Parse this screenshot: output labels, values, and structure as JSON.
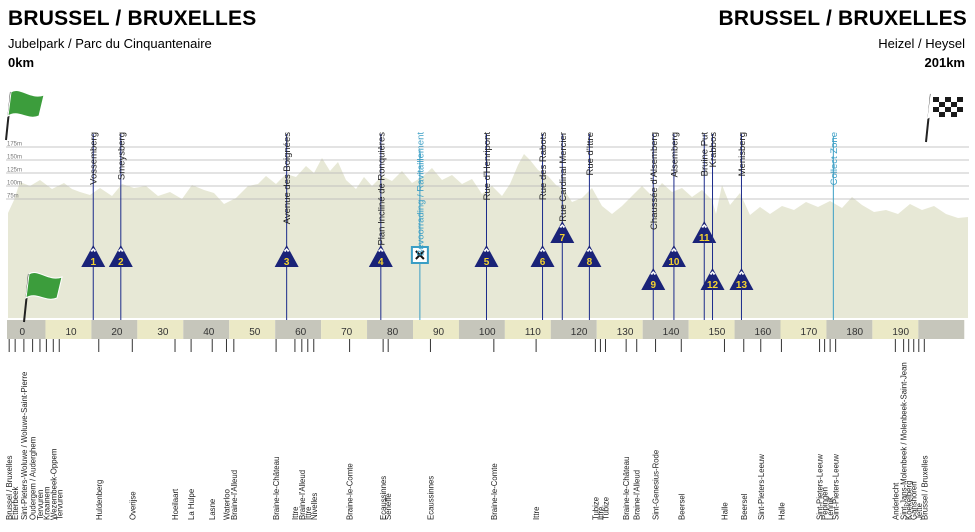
{
  "header": {
    "start_city": "BRUSSEL / BRUXELLES",
    "start_place": "Jubelpark / Parc du Cinquantenaire",
    "start_km": "0km",
    "finish_city": "BRUSSEL / BRUXELLES",
    "finish_place": "Heizel / Heysel",
    "finish_km": "201km"
  },
  "altitude_labels": [
    "175m",
    "150m",
    "125m",
    "100m",
    "75m"
  ],
  "km_ticks": [
    "0",
    "10",
    "20",
    "30",
    "40",
    "50",
    "60",
    "70",
    "80",
    "90",
    "100",
    "110",
    "120",
    "130",
    "140",
    "150",
    "160",
    "170",
    "180",
    "190"
  ],
  "markers": [
    {
      "km": 15.4,
      "label": "Vossemberg",
      "kind": "climb",
      "num": "1",
      "level": "hi"
    },
    {
      "km": 21.4,
      "label": "Smeysberg",
      "kind": "climb",
      "num": "2",
      "level": "hi"
    },
    {
      "km": 57.5,
      "label": "Avenue des Boignées",
      "kind": "climb",
      "num": "3",
      "level": "hi"
    },
    {
      "km": 78.0,
      "label": "Plan Incliné de Ronquières",
      "kind": "climb",
      "num": "4",
      "level": "hi"
    },
    {
      "km": 86.5,
      "label": "Bevoorrading / Ravitaillement",
      "kind": "feed",
      "num": "",
      "level": "hi"
    },
    {
      "km": 101.0,
      "label": "Rue d'Henripont",
      "kind": "climb",
      "num": "5",
      "level": "hi"
    },
    {
      "km": 113.2,
      "label": "Rue des Rabots",
      "kind": "climb",
      "num": "6",
      "level": "hi"
    },
    {
      "km": 117.5,
      "label": "Rue Cardinal Mercier",
      "kind": "climb",
      "num": "7",
      "level": "up"
    },
    {
      "km": 123.4,
      "label": "Rue d'Ittre",
      "kind": "climb",
      "num": "8",
      "level": "hi"
    },
    {
      "km": 137.3,
      "label": "Chaussée d'Alsemberg",
      "kind": "climb",
      "num": "9",
      "level": "lo"
    },
    {
      "km": 141.8,
      "label": "Alsemberg",
      "kind": "climb",
      "num": "10",
      "level": "hi"
    },
    {
      "km": 148.4,
      "label": "Bruine Put",
      "kind": "climb",
      "num": "11",
      "level": "up"
    },
    {
      "km": 150.2,
      "label": "Krabbos",
      "kind": "climb",
      "num": "12",
      "level": "lo"
    },
    {
      "km": 156.5,
      "label": "Menisberg",
      "kind": "climb",
      "num": "13",
      "level": "lo"
    },
    {
      "km": 176.5,
      "label": "Collect Zone",
      "kind": "zone",
      "num": "",
      "level": "none"
    }
  ],
  "places": [
    {
      "km": -2.9,
      "label": "Brussel / Bruxelles"
    },
    {
      "km": -1.6,
      "label": "Etterbeek"
    },
    {
      "km": 0.3,
      "label": "Sint-Pieters-Woluwe / Woluwe-Saint-Pierre"
    },
    {
      "km": 2.2,
      "label": "Oudergem / Auderghem"
    },
    {
      "km": 3.8,
      "label": "Tervuren"
    },
    {
      "km": 5.2,
      "label": "Kraainem"
    },
    {
      "km": 6.7,
      "label": "Wezembeek-Oppem"
    },
    {
      "km": 8.0,
      "label": "Tervuren"
    },
    {
      "km": 16.6,
      "label": "Huldenberg"
    },
    {
      "km": 23.9,
      "label": "Overijse"
    },
    {
      "km": 33.2,
      "label": "Hoeilaart"
    },
    {
      "km": 36.7,
      "label": "La Hulpe"
    },
    {
      "km": 41.3,
      "label": "Lasne"
    },
    {
      "km": 44.4,
      "label": "Waterloo"
    },
    {
      "km": 46.0,
      "label": "Braine-l'Alleud"
    },
    {
      "km": 55.2,
      "label": "Braine-le-Château"
    },
    {
      "km": 59.3,
      "label": "Ittre"
    },
    {
      "km": 60.8,
      "label": "Braine-l'Alleud"
    },
    {
      "km": 62.1,
      "label": "Ittre"
    },
    {
      "km": 63.4,
      "label": "Nivelles"
    },
    {
      "km": 71.2,
      "label": "Braine-le-Comte"
    },
    {
      "km": 78.5,
      "label": "Ecaussinnes"
    },
    {
      "km": 79.6,
      "label": "Seneffe"
    },
    {
      "km": 88.8,
      "label": "Ecaussinnes"
    },
    {
      "km": 102.6,
      "label": "Braine-le-Comte"
    },
    {
      "km": 111.8,
      "label": "Ittre"
    },
    {
      "km": 124.7,
      "label": "Tubize"
    },
    {
      "km": 125.8,
      "label": "Ittre"
    },
    {
      "km": 126.9,
      "label": "Tubize"
    },
    {
      "km": 131.4,
      "label": "Braine-le-Château"
    },
    {
      "km": 133.7,
      "label": "Braine-l'Alleud"
    },
    {
      "km": 137.8,
      "label": "Sint-Genesius-Rode"
    },
    {
      "km": 143.4,
      "label": "Beersel"
    },
    {
      "km": 152.8,
      "label": "Halle"
    },
    {
      "km": 157.0,
      "label": "Beersel"
    },
    {
      "km": 160.7,
      "label": "Sint-Pieters-Leeuw"
    },
    {
      "km": 165.2,
      "label": "Halle"
    },
    {
      "km": 173.5,
      "label": "Sint-Pieters-Leeuw"
    },
    {
      "km": 174.6,
      "label": "Pepingen"
    },
    {
      "km": 175.8,
      "label": "Lennik"
    },
    {
      "km": 177.0,
      "label": "Sint-Pieters-Leeuw"
    },
    {
      "km": 190.0,
      "label": "Anderlecht"
    },
    {
      "km": 191.8,
      "label": "Sint-Jans-Molenbeek / Molenbeek-Saint-Jean"
    },
    {
      "km": 192.9,
      "label": "Koekelberg"
    },
    {
      "km": 194.0,
      "label": "Ganshoren"
    },
    {
      "km": 195.1,
      "label": "Jette"
    },
    {
      "km": 196.3,
      "label": "Brussel / Bruxelles"
    }
  ],
  "colors": {
    "profile_fill": "#e7e8d6",
    "band_dark": "#c6c6bb",
    "band_light": "#ebe9c6",
    "marker_line": "#1b2a8a",
    "marker_fill": "#1a2378",
    "climb_number": "#f4d330",
    "zone_line": "#3a9ec5",
    "grid": "#b5b5b5",
    "start_flag": "#3c9d3c",
    "finish_flag": "#1b1b1b"
  },
  "icons": {
    "start": "green-flag-icon",
    "finish": "checkered-flag-icon",
    "feed": "feed-zone-icon"
  }
}
